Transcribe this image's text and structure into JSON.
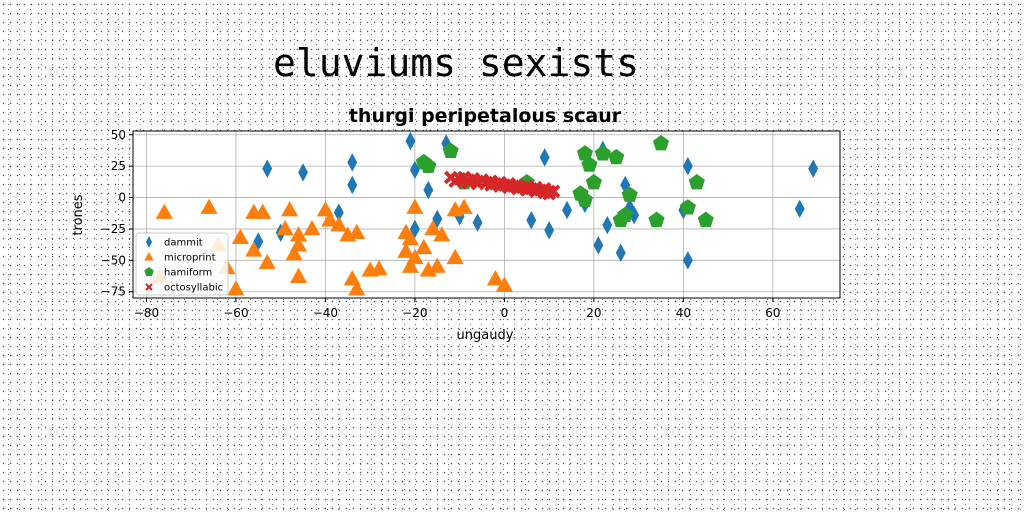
{
  "figure": {
    "suptitle": "eluviums sexists"
  },
  "chart_data": {
    "type": "scatter",
    "title": "thurgi peripetalous scaur",
    "xlabel": "ungaudy",
    "ylabel": "trones",
    "xlim": [
      -83,
      75
    ],
    "ylim": [
      -80,
      53
    ],
    "xticks": [
      -80,
      -60,
      -40,
      -20,
      0,
      20,
      40,
      60
    ],
    "yticks": [
      -75,
      -50,
      -25,
      0,
      25,
      50
    ],
    "grid": true,
    "legend": {
      "location": "lower-left"
    },
    "series": [
      {
        "name": "dammit",
        "marker": "diamond",
        "color": "#1f77b4",
        "points": [
          [
            -21,
            45
          ],
          [
            -13,
            43
          ],
          [
            -53,
            23
          ],
          [
            -45,
            20
          ],
          [
            -34,
            28
          ],
          [
            -34,
            10
          ],
          [
            -20,
            22
          ],
          [
            -17,
            6
          ],
          [
            -37,
            -12
          ],
          [
            -15,
            -17
          ],
          [
            -10,
            -15
          ],
          [
            -6,
            -20
          ],
          [
            -50,
            -28
          ],
          [
            -55,
            -35
          ],
          [
            -20,
            -25
          ],
          [
            6,
            -18
          ],
          [
            10,
            -26
          ],
          [
            9,
            32
          ],
          [
            14,
            -10
          ],
          [
            18,
            -5
          ],
          [
            21,
            -38
          ],
          [
            22,
            38
          ],
          [
            23,
            -22
          ],
          [
            26,
            -44
          ],
          [
            27,
            10
          ],
          [
            28,
            -8
          ],
          [
            29,
            -14
          ],
          [
            40,
            -10
          ],
          [
            41,
            25
          ],
          [
            41,
            -50
          ],
          [
            66,
            -9
          ],
          [
            69,
            23
          ]
        ]
      },
      {
        "name": "microprint",
        "marker": "triangle",
        "color": "#ff7f0e",
        "points": [
          [
            -77,
            -63
          ],
          [
            -76,
            -12
          ],
          [
            -66,
            -8
          ],
          [
            -64,
            -38
          ],
          [
            -62,
            -56
          ],
          [
            -60,
            -73
          ],
          [
            -59,
            -32
          ],
          [
            -56,
            -42
          ],
          [
            -56,
            -12
          ],
          [
            -54,
            -12
          ],
          [
            -53,
            -52
          ],
          [
            -49,
            -25
          ],
          [
            -48,
            -10
          ],
          [
            -47,
            -45
          ],
          [
            -46,
            -30
          ],
          [
            -46,
            -38
          ],
          [
            -46,
            -63
          ],
          [
            -43,
            -25
          ],
          [
            -40,
            -10
          ],
          [
            -39,
            -18
          ],
          [
            -37,
            -22
          ],
          [
            -35,
            -30
          ],
          [
            -33,
            -28
          ],
          [
            -34,
            -65
          ],
          [
            -33,
            -73
          ],
          [
            -30,
            -58
          ],
          [
            -28,
            -57
          ],
          [
            -22,
            -28
          ],
          [
            -22,
            -43
          ],
          [
            -21,
            -33
          ],
          [
            -21,
            -55
          ],
          [
            -20,
            -8
          ],
          [
            -20,
            -48
          ],
          [
            -18,
            -40
          ],
          [
            -17,
            -58
          ],
          [
            -16,
            -25
          ],
          [
            -15,
            -55
          ],
          [
            -14,
            -30
          ],
          [
            -11,
            -10
          ],
          [
            -11,
            -48
          ],
          [
            -9,
            -8
          ],
          [
            -2,
            -65
          ],
          [
            0,
            -70
          ]
        ]
      },
      {
        "name": "hamiform",
        "marker": "pentagon",
        "color": "#2ca02c",
        "points": [
          [
            -18,
            28
          ],
          [
            -17,
            25
          ],
          [
            -12,
            37
          ],
          [
            -9,
            12
          ],
          [
            5,
            12
          ],
          [
            17,
            3
          ],
          [
            18,
            -2
          ],
          [
            18,
            35
          ],
          [
            19,
            26
          ],
          [
            20,
            12
          ],
          [
            22,
            35
          ],
          [
            25,
            32
          ],
          [
            26,
            -18
          ],
          [
            27,
            -14
          ],
          [
            28,
            2
          ],
          [
            34,
            -18
          ],
          [
            35,
            43
          ],
          [
            41,
            -8
          ],
          [
            43,
            12
          ],
          [
            45,
            -18
          ]
        ]
      },
      {
        "name": "octosyllabic",
        "marker": "x",
        "color": "#d62728",
        "points": [
          [
            -12,
            16
          ],
          [
            -11,
            13
          ],
          [
            -10,
            15
          ],
          [
            -9,
            16
          ],
          [
            -8,
            12
          ],
          [
            -8,
            14
          ],
          [
            -7,
            15
          ],
          [
            -6,
            11
          ],
          [
            -6,
            13
          ],
          [
            -5,
            14
          ],
          [
            -4,
            12
          ],
          [
            -3,
            10
          ],
          [
            -3,
            13
          ],
          [
            -2,
            11
          ],
          [
            -1,
            9
          ],
          [
            -1,
            12
          ],
          [
            0,
            10
          ],
          [
            1,
            8
          ],
          [
            1,
            11
          ],
          [
            2,
            9
          ],
          [
            3,
            7
          ],
          [
            3,
            10
          ],
          [
            4,
            8
          ],
          [
            5,
            6
          ],
          [
            5,
            9
          ],
          [
            6,
            7
          ],
          [
            7,
            5
          ],
          [
            7,
            8
          ],
          [
            8,
            6
          ],
          [
            9,
            4
          ],
          [
            9,
            7
          ],
          [
            10,
            5
          ],
          [
            10,
            3
          ],
          [
            11,
            5
          ]
        ]
      }
    ]
  }
}
